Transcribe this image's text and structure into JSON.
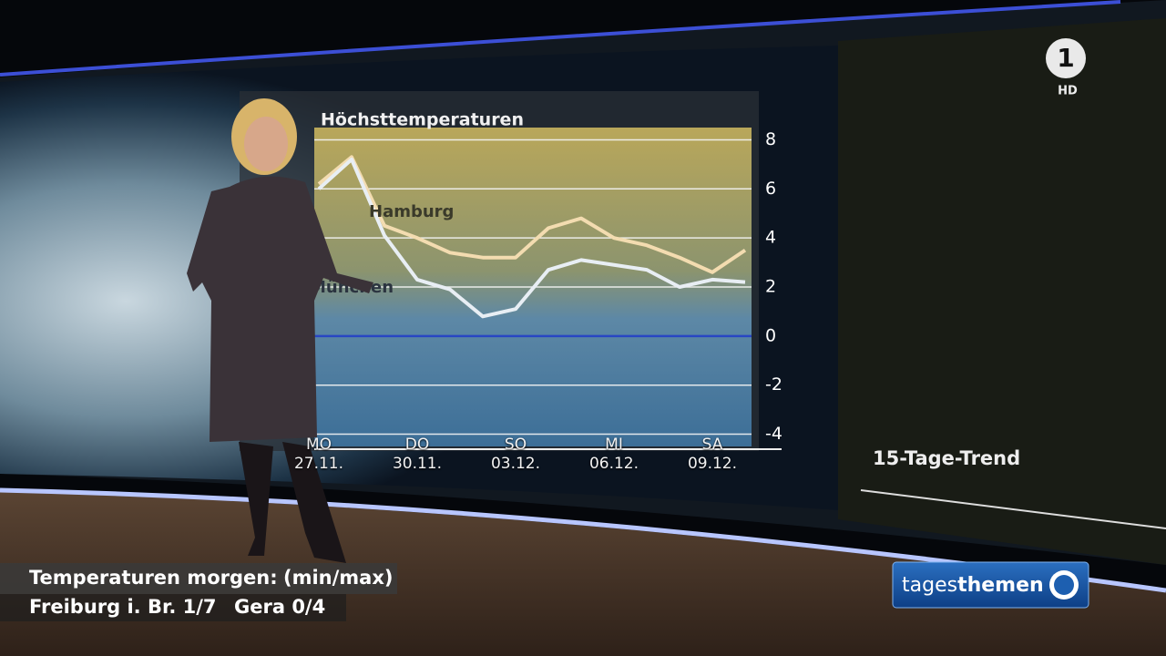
{
  "chart_data": {
    "type": "line",
    "title": "Höchsttemperaturen",
    "categories": [
      "MO\n27.11.",
      null,
      null,
      "DO\n30.11.",
      null,
      null,
      "SO\n03.12.",
      null,
      null,
      "MI\n06.12.",
      null,
      null,
      "SA\n09.12.",
      null
    ],
    "series": [
      {
        "name": "Hamburg",
        "color": "#f3dcb0",
        "values": [
          6.2,
          7.3,
          4.5,
          4.0,
          3.4,
          3.2,
          3.2,
          4.4,
          4.8,
          4.0,
          3.7,
          3.2,
          2.6,
          3.5
        ]
      },
      {
        "name": "München",
        "color": "#e8eef4",
        "values": [
          6.0,
          7.2,
          4.1,
          2.3,
          1.9,
          0.8,
          1.1,
          2.7,
          3.1,
          2.9,
          2.7,
          2.0,
          2.3,
          2.2
        ]
      }
    ],
    "ylim": [
      -4.5,
      8.5
    ],
    "yticks": [
      8,
      6,
      4,
      2,
      0,
      -2,
      -4
    ],
    "grid": true,
    "zero_line_color": "#2340c8"
  },
  "wall": {
    "trend_title": "15-Tage-Trend"
  },
  "broadcast": {
    "logo": "1",
    "hd": "HD",
    "show_name_a": "tages",
    "show_name_b": "themen"
  },
  "ticker": {
    "heading": "Temperaturen morgen:",
    "unit": "(min/max)",
    "city_1": "Freiburg i. Br. 1/7",
    "city_2": "Gera 0/4"
  }
}
